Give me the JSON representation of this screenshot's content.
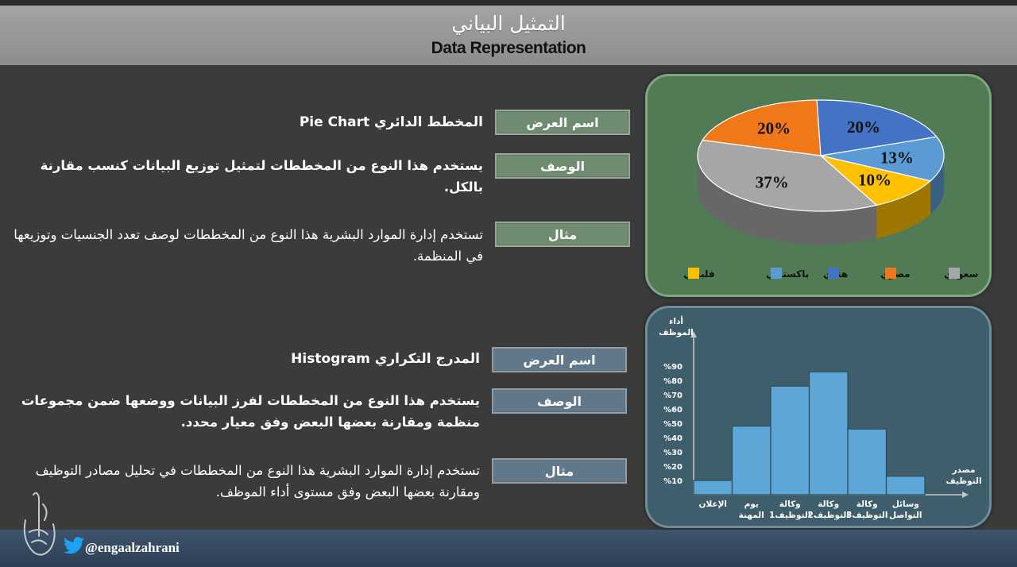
{
  "header": {
    "title_ar": "التمثيل البياني",
    "title_en": "Data Representation"
  },
  "sections": [
    {
      "name_label": "اسم العرض",
      "name_value": "المخطط الدائري Pie Chart",
      "desc_label": "الوصف",
      "desc_value": "يستخدم هذا النوع من المخططات لتمثيل توزيع البيانات كنسب مقارنة بالكل.",
      "example_label": "مثال",
      "example_value": "تستخدم إدارة الموارد البشرية هذا النوع من المخططات لوصف تعدد الجنسيات وتوزيعها في المنظمة."
    },
    {
      "name_label": "اسم العرض",
      "name_value": "المدرج التكراري Histogram",
      "desc_label": "الوصف",
      "desc_value": "يستخدم هذا النوع من المخططات لفرز البيانات ووضعها ضمن مجموعات منظمة ومقارنة بعضها البعض وفق معيار محدد.",
      "example_label": "مثال",
      "example_value": "تستخدم إدارة الموارد البشرية هذا النوع من المخططات في تحليل مصادر التوظيف ومقارنة بعضها البعض وفق مستوى أداء الموظف."
    }
  ],
  "footer": {
    "handle": "@engaalzahrani",
    "twitter_icon": "twitter-bird-icon",
    "logo_icon": "calligraphy-logo"
  },
  "chart_data": [
    {
      "type": "pie",
      "title": "",
      "slices": [
        {
          "label": "سعودي",
          "value": 37,
          "color": "#a6a6a6"
        },
        {
          "label": "مصري",
          "value": 20,
          "color": "#f07818"
        },
        {
          "label": "هندي",
          "value": 20,
          "color": "#4472c4"
        },
        {
          "label": "باكستاني",
          "value": 13,
          "color": "#5b9bd5"
        },
        {
          "label": "فلبيني",
          "value": 10,
          "color": "#ffc000"
        }
      ],
      "value_labels": [
        "37%",
        "20%",
        "20%",
        "13%",
        "10%"
      ],
      "legend_placement": "bottom"
    },
    {
      "type": "bar",
      "title": "",
      "ylabel": "أداء الموظف",
      "xlabel": "مصدر التوظيف",
      "categories": [
        "الإعلان",
        "يوم المهنة",
        "وكالة التوظيف1",
        "وكالة التوظيف2",
        "وكالة التوظيف3",
        "وسائل التواصل"
      ],
      "values": [
        10,
        48,
        76,
        86,
        46,
        13
      ],
      "yticks": [
        "%10",
        "%20",
        "%30",
        "%40",
        "%50",
        "%60",
        "%70",
        "%80",
        "%90"
      ],
      "ylim": [
        0,
        100
      ],
      "bar_color": "#5ea6d8"
    }
  ]
}
